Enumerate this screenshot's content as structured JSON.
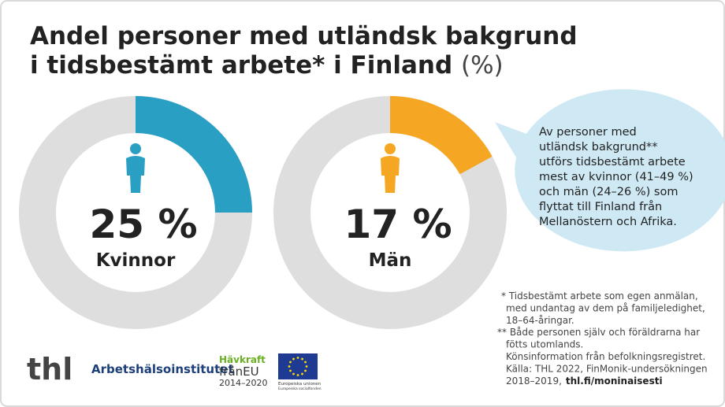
{
  "header": {
    "title_lines": [
      "Andel personer med utländsk bakgrund",
      "i tidsbestämt arbete* i Finland"
    ],
    "unit": "(%)"
  },
  "chart_data": [
    {
      "type": "donut",
      "categories": [
        "Kvinnor"
      ],
      "values": [
        25
      ],
      "value_labels": [
        "25 %"
      ],
      "color": "#2a9fc4"
    },
    {
      "type": "donut",
      "categories": [
        "Män"
      ],
      "values": [
        17
      ],
      "value_labels": [
        "17 %"
      ],
      "color": "#f5a623"
    }
  ],
  "callout": {
    "lines": [
      "Av personer med",
      "utländsk bakgrund**",
      "utförs tidsbestämt arbete",
      "mest av kvinnor (41–49 %)",
      "och män (24–26 %) som",
      "flyttat till Finland från",
      "Mellanöstern och Afrika."
    ]
  },
  "footnotes": {
    "lines": [
      "* Tidsbestämt arbete som egen anmälan,",
      "med undantag av dem på familjeledighet,",
      "18–64-åringar.",
      "** Både personen själv och föräldrarna har",
      "fötts utomlands.",
      "Könsinformation från befolkningsregistret.",
      "Källa: THL 2022, FinMonik-undersökningen",
      "2018–2019,"
    ],
    "link": "thl.fi/moninaisesti"
  },
  "logos": {
    "thl": "thl",
    "ttl": "Arbetshälsoinstitutet",
    "esf_top": "Hävkraft",
    "esf_mid": "frånEU",
    "esf_years": "2014–2020",
    "eu_1": "Europeiska unionen",
    "eu_2": "Europeiska socialfonden"
  }
}
